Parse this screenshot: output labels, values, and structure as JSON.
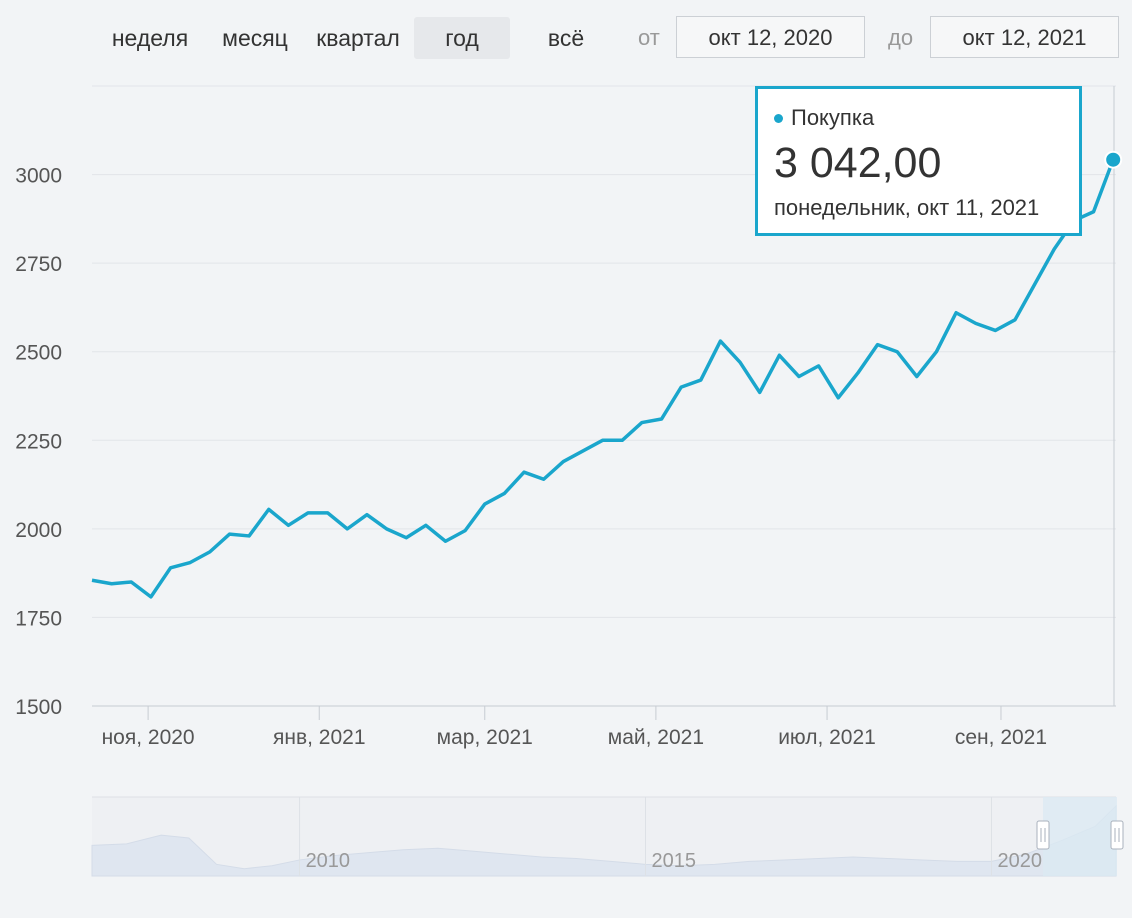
{
  "toolbar": {
    "ranges": [
      "неделя",
      "месяц",
      "квартал",
      "год",
      "всё"
    ],
    "active_range": "год",
    "from_label": "от",
    "from_value": "окт 12, 2020",
    "to_label": "до",
    "to_value": "окт 12, 2021"
  },
  "tooltip": {
    "series": "Покупка",
    "value": "3 042,00",
    "date": "понедельник, окт 11, 2021"
  },
  "colors": {
    "line": "#1aa6cc",
    "grid": "#e2e5e9",
    "navigator": "#dfe6f0",
    "selection": "#dbe9f3"
  },
  "chart_data": [
    {
      "type": "line",
      "title": "",
      "xlabel": "",
      "ylabel": "",
      "ylim": [
        1500,
        3250
      ],
      "yticks": [
        1500,
        1750,
        2000,
        2250,
        2500,
        2750,
        3000
      ],
      "xticks": [
        "ноя, 2020",
        "янв, 2021",
        "мар, 2021",
        "май, 2021",
        "июл, 2021",
        "сен, 2021"
      ],
      "xtick_dates": [
        "2020-11-01",
        "2021-01-01",
        "2021-03-01",
        "2021-05-01",
        "2021-07-01",
        "2021-09-01"
      ],
      "xlim": [
        "2020-10-12",
        "2021-10-12"
      ],
      "grid": true,
      "legend": "none",
      "series": [
        {
          "name": "Покупка",
          "x": [
            "2020-10-12",
            "2020-10-19",
            "2020-10-26",
            "2020-11-02",
            "2020-11-09",
            "2020-11-16",
            "2020-11-23",
            "2020-11-30",
            "2020-12-07",
            "2020-12-14",
            "2020-12-21",
            "2020-12-28",
            "2021-01-04",
            "2021-01-11",
            "2021-01-18",
            "2021-01-25",
            "2021-02-01",
            "2021-02-08",
            "2021-02-15",
            "2021-02-22",
            "2021-03-01",
            "2021-03-08",
            "2021-03-15",
            "2021-03-22",
            "2021-03-29",
            "2021-04-05",
            "2021-04-12",
            "2021-04-19",
            "2021-04-26",
            "2021-05-03",
            "2021-05-10",
            "2021-05-17",
            "2021-05-24",
            "2021-05-31",
            "2021-06-07",
            "2021-06-14",
            "2021-06-21",
            "2021-06-28",
            "2021-07-05",
            "2021-07-12",
            "2021-07-19",
            "2021-07-26",
            "2021-08-02",
            "2021-08-09",
            "2021-08-16",
            "2021-08-23",
            "2021-08-30",
            "2021-09-06",
            "2021-09-13",
            "2021-09-20",
            "2021-09-27",
            "2021-10-04",
            "2021-10-11"
          ],
          "values": [
            1855,
            1845,
            1850,
            1808,
            1890,
            1905,
            1935,
            1985,
            1980,
            2055,
            2010,
            2045,
            2045,
            2000,
            2040,
            2000,
            1975,
            2010,
            1965,
            1995,
            2070,
            2100,
            2160,
            2140,
            2190,
            2220,
            2250,
            2250,
            2300,
            2310,
            2400,
            2420,
            2530,
            2470,
            2385,
            2490,
            2430,
            2460,
            2370,
            2440,
            2520,
            2500,
            2430,
            2500,
            2610,
            2580,
            2560,
            2590,
            2690,
            2790,
            2870,
            2895,
            3042
          ]
        }
      ]
    },
    {
      "type": "area",
      "title": "",
      "xticks": [
        "2010",
        "2015",
        "2020"
      ],
      "legend": "none",
      "series": [
        {
          "name": "",
          "x": [
            2007.0,
            2007.5,
            2008.0,
            2008.4,
            2008.8,
            2009.2,
            2009.6,
            2010.0,
            2010.5,
            2011.0,
            2011.5,
            2012.0,
            2012.5,
            2013.0,
            2013.5,
            2014.0,
            2014.5,
            2015.0,
            2015.5,
            2016.0,
            2016.5,
            2017.0,
            2017.5,
            2018.0,
            2018.5,
            2019.0,
            2019.5,
            2020.0,
            2020.5,
            2021.0,
            2021.5,
            2021.8
          ],
          "values": [
            1650,
            1700,
            2000,
            1900,
            1000,
            850,
            950,
            1150,
            1300,
            1400,
            1500,
            1550,
            1450,
            1350,
            1250,
            1200,
            1100,
            1000,
            950,
            1000,
            1100,
            1150,
            1200,
            1250,
            1200,
            1150,
            1100,
            1100,
            1350,
            1800,
            2300,
            3000
          ]
        }
      ]
    }
  ]
}
